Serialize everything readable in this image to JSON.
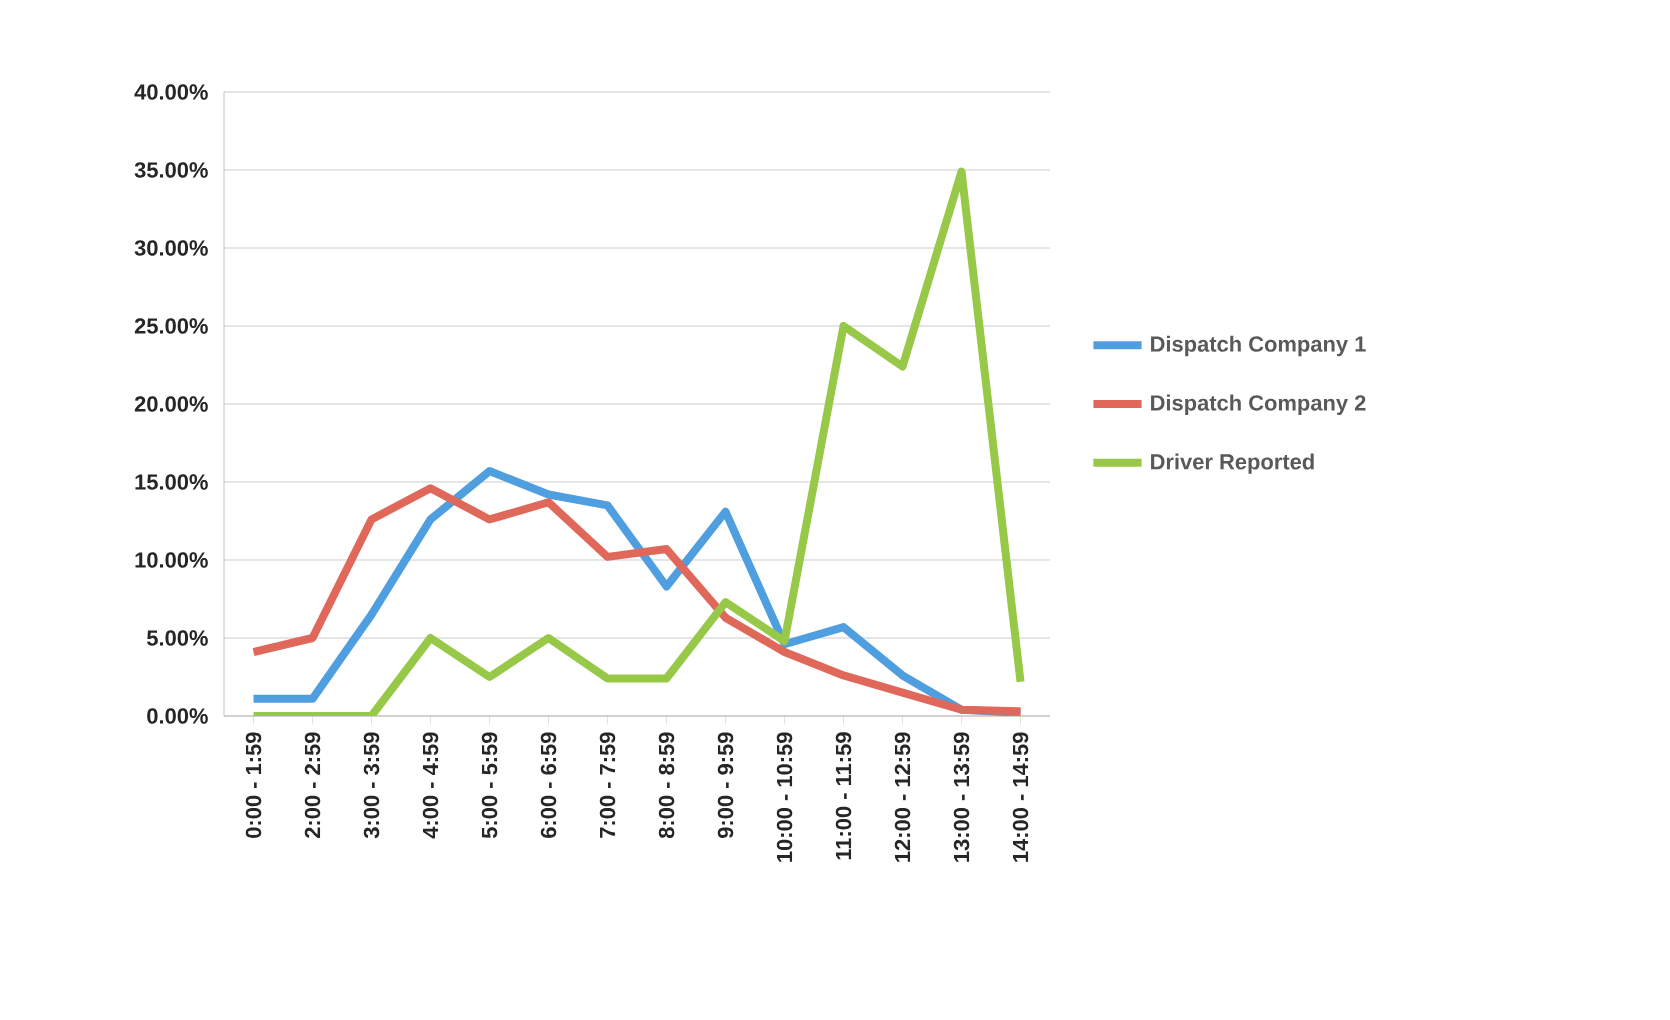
{
  "chart_data": {
    "type": "line",
    "categories": [
      "0:00 - 1:59",
      "2:00 - 2:59",
      "3:00 - 3:59",
      "4:00 - 4:59",
      "5:00 - 5:59",
      "6:00 - 6:59",
      "7:00 - 7:59",
      "8:00 - 8:59",
      "9:00 - 9:59",
      "10:00 - 10:59",
      "11:00 - 11:59",
      "12:00 - 12:59",
      "13:00 - 13:59",
      "14:00 - 14:59"
    ],
    "series": [
      {
        "name": "Dispatch Company 1",
        "color": "#4f9fe0",
        "values": [
          1.1,
          1.1,
          6.5,
          12.6,
          15.7,
          14.2,
          13.5,
          8.3,
          13.1,
          4.6,
          5.7,
          2.6,
          0.4,
          0.2
        ]
      },
      {
        "name": "Dispatch Company 2",
        "color": "#e0685a",
        "values": [
          4.1,
          5.0,
          12.6,
          14.6,
          12.6,
          13.7,
          10.2,
          10.7,
          6.3,
          4.1,
          2.6,
          1.5,
          0.4,
          0.3
        ]
      },
      {
        "name": "Driver Reported",
        "color": "#97c848",
        "values": [
          0,
          0,
          0,
          5.0,
          2.5,
          5.0,
          2.4,
          2.4,
          7.3,
          4.8,
          25.0,
          22.4,
          34.9,
          2.2
        ]
      }
    ],
    "ylim": [
      0,
      40
    ],
    "yticks": [
      {
        "value": 0,
        "label": "0.00%"
      },
      {
        "value": 5,
        "label": "5.00%"
      },
      {
        "value": 10,
        "label": "10.00%"
      },
      {
        "value": 15,
        "label": "15.00%"
      },
      {
        "value": 20,
        "label": "20.00%"
      },
      {
        "value": 25,
        "label": "25.00%"
      },
      {
        "value": 30,
        "label": "30.00%"
      },
      {
        "value": 35,
        "label": "35.00%"
      },
      {
        "value": 40,
        "label": "40.00%"
      }
    ],
    "grid": "y",
    "legend": "right",
    "marker": "none",
    "line_style": "solid"
  }
}
